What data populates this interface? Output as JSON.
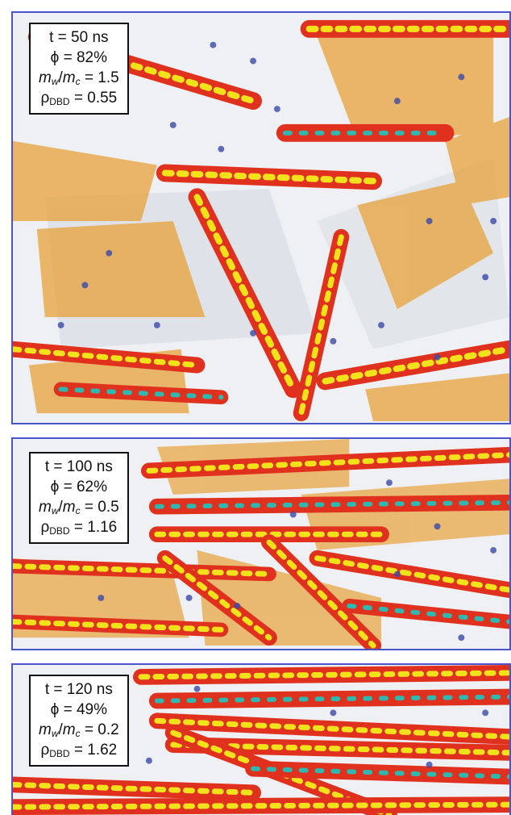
{
  "panels": [
    {
      "time": "t = 50 ns",
      "phi_symbol": "ϕ",
      "phi_value": " = 82%",
      "mw": "m",
      "mw_sub": "w",
      "slash": "/",
      "mc": "m",
      "mc_sub": "c",
      "ratio_value": " = 1.5",
      "rho": "ρ",
      "rho_sub": "DBD",
      "rho_value": " = 0.55"
    },
    {
      "time": "t = 100 ns",
      "phi_symbol": "ϕ",
      "phi_value": " = 62%",
      "mw": "m",
      "mw_sub": "w",
      "slash": "/",
      "mc": "m",
      "mc_sub": "c",
      "ratio_value": " = 0.5",
      "rho": "ρ",
      "rho_sub": "DBD",
      "rho_value": " = 1.16"
    },
    {
      "time": "t = 120 ns",
      "phi_symbol": "ϕ",
      "phi_value": " = 49%",
      "mw": "m",
      "mw_sub": "w",
      "slash": "/",
      "mc": "m",
      "mc_sub": "c",
      "ratio_value": " = 0.2",
      "rho": "ρ",
      "rho_sub": "DBD",
      "rho_value": " = 1.62"
    }
  ],
  "colors": {
    "border": "#4a56c8",
    "sheet_fill": "#e8a23a",
    "atom_yellow": "#f2e21c",
    "atom_red": "#e0301e",
    "atom_cyan": "#2fb8b0",
    "water_blue": "#3c4aa8",
    "background": "#eef0f4"
  }
}
